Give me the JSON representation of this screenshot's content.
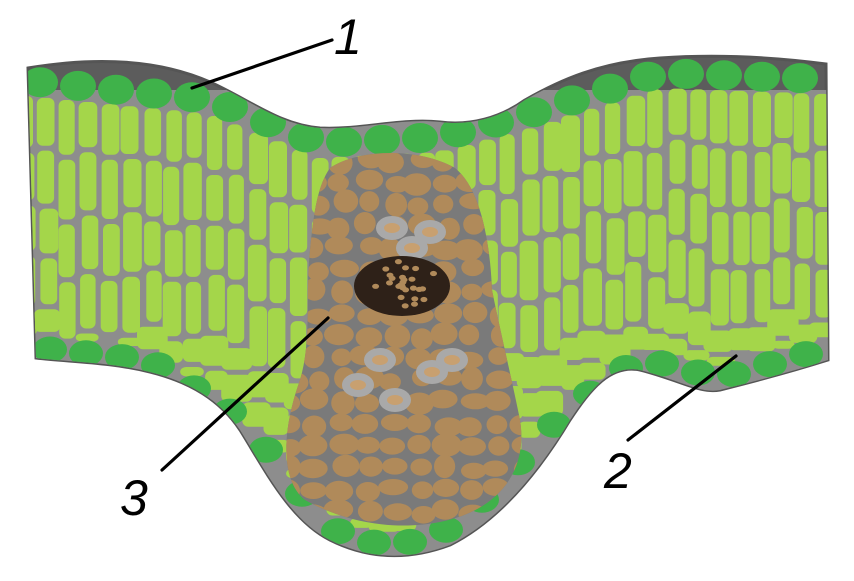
{
  "labels": {
    "one": "1",
    "two": "2",
    "three": "3"
  },
  "colors": {
    "outline": "#5c5c5c",
    "background_tissue": "#8a8a8a",
    "epidermis": "#3fb24a",
    "mesophyll": "#a4d64a",
    "vascular_bundle": "#b08a5a",
    "xylem_vessels": "#a9a9a9",
    "phloem": "#3b2a1a"
  }
}
